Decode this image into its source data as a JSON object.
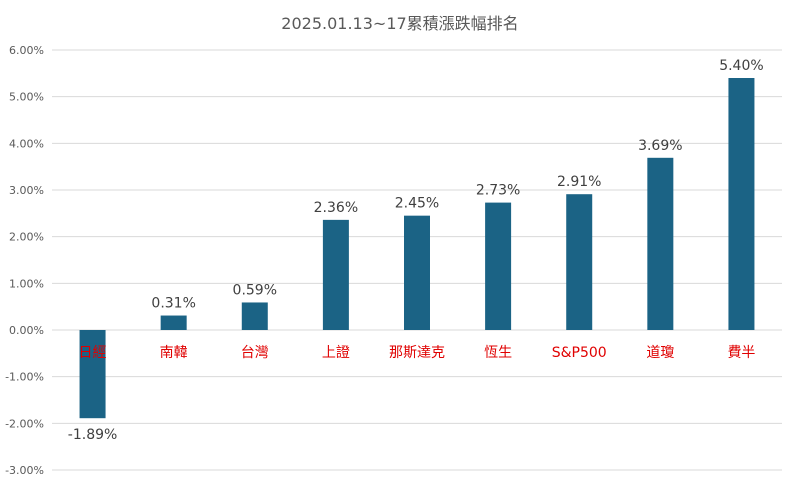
{
  "chart_data": {
    "type": "bar",
    "title": "2025.01.13~17累積漲跌幅排名",
    "categories": [
      "日經",
      "南韓",
      "台灣",
      "上證",
      "那斯達克",
      "恆生",
      "S&P500",
      "道瓊",
      "費半"
    ],
    "series": [
      {
        "values": [
          -1.89,
          0.31,
          0.59,
          2.36,
          2.45,
          2.73,
          2.91,
          3.69,
          5.4
        ],
        "data_labels": [
          "-1.89%",
          "0.31%",
          "0.59%",
          "2.36%",
          "2.45%",
          "2.73%",
          "2.91%",
          "3.69%",
          "5.40%"
        ]
      }
    ],
    "ylim": [
      -3,
      6
    ],
    "yticks": [
      -3,
      -2,
      -1,
      0,
      1,
      2,
      3,
      4,
      5,
      6
    ],
    "ytick_labels": [
      "-3.00%",
      "-2.00%",
      "-1.00%",
      "0.00%",
      "1.00%",
      "2.00%",
      "3.00%",
      "4.00%",
      "5.00%",
      "6.00%"
    ],
    "grid": true,
    "bar_color": "#1b6385",
    "category_label_color": "#e00000",
    "gridline_color": "#d9d9d9"
  }
}
